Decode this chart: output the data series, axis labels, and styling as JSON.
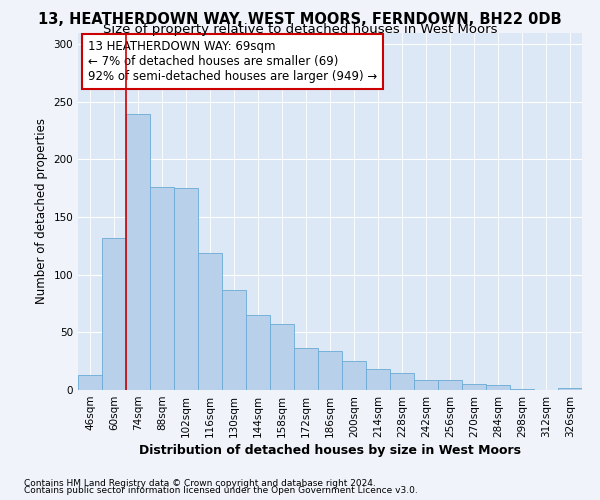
{
  "title1": "13, HEATHERDOWN WAY, WEST MOORS, FERNDOWN, BH22 0DB",
  "title2": "Size of property relative to detached houses in West Moors",
  "xlabel": "Distribution of detached houses by size in West Moors",
  "ylabel": "Number of detached properties",
  "footnote1": "Contains HM Land Registry data © Crown copyright and database right 2024.",
  "footnote2": "Contains public sector information licensed under the Open Government Licence v3.0.",
  "bar_labels": [
    "46sqm",
    "60sqm",
    "74sqm",
    "88sqm",
    "102sqm",
    "116sqm",
    "130sqm",
    "144sqm",
    "158sqm",
    "172sqm",
    "186sqm",
    "200sqm",
    "214sqm",
    "228sqm",
    "242sqm",
    "256sqm",
    "270sqm",
    "284sqm",
    "298sqm",
    "312sqm",
    "326sqm"
  ],
  "bar_values": [
    13,
    132,
    239,
    176,
    175,
    119,
    87,
    65,
    57,
    36,
    34,
    25,
    18,
    15,
    9,
    9,
    5,
    4,
    1,
    0,
    2
  ],
  "bar_color": "#b8d0ea",
  "bar_edge_color": "#6aaad4",
  "vline_x": 1.5,
  "vline_color": "#cc0000",
  "annotation_text": "13 HEATHERDOWN WAY: 69sqm\n← 7% of detached houses are smaller (69)\n92% of semi-detached houses are larger (949) →",
  "annotation_box_facecolor": "#ffffff",
  "annotation_box_edgecolor": "#cc0000",
  "ylim": [
    0,
    310
  ],
  "yticks": [
    0,
    50,
    100,
    150,
    200,
    250,
    300
  ],
  "background_color": "#f0f4fa",
  "plot_bg_color": "#dce8f5",
  "grid_color": "#ffffff",
  "title1_fontsize": 10.5,
  "title2_fontsize": 9.5,
  "ylabel_fontsize": 8.5,
  "xlabel_fontsize": 9,
  "tick_fontsize": 7.5,
  "annotation_fontsize": 8.5,
  "footnote_fontsize": 6.5
}
